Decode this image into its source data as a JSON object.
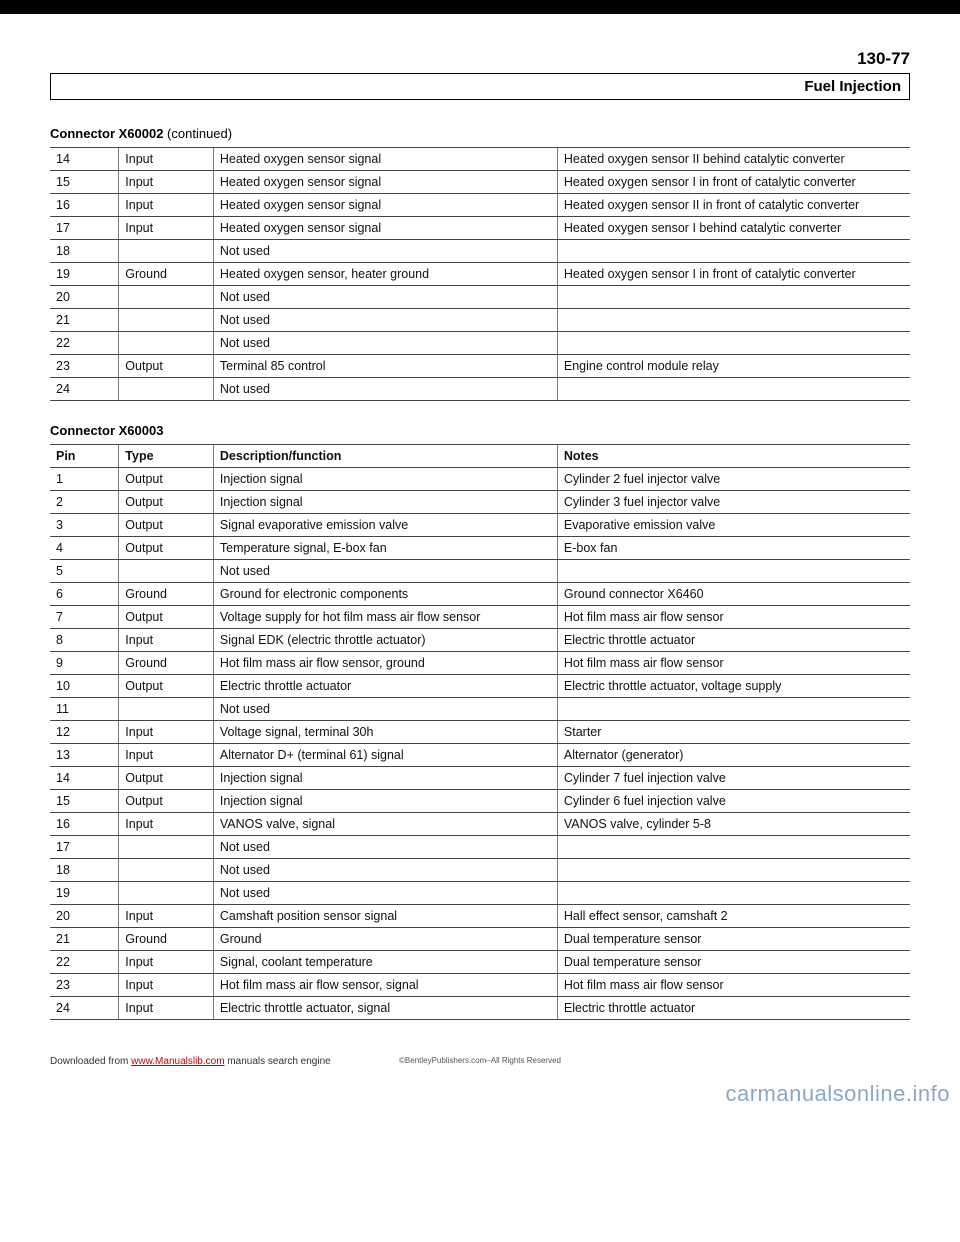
{
  "page_number": "130-77",
  "section_title": "Fuel Injection",
  "table1": {
    "caption_bold": "Connector X60002",
    "caption_rest": " (continued)",
    "rows": [
      {
        "pin": "14",
        "type": "Input",
        "desc": "Heated oxygen sensor signal",
        "notes": "Heated oxygen sensor II behind catalytic converter"
      },
      {
        "pin": "15",
        "type": "Input",
        "desc": "Heated oxygen sensor signal",
        "notes": "Heated oxygen sensor I in front of catalytic converter"
      },
      {
        "pin": "16",
        "type": "Input",
        "desc": "Heated oxygen sensor signal",
        "notes": "Heated oxygen sensor II in front of catalytic converter"
      },
      {
        "pin": "17",
        "type": "Input",
        "desc": "Heated oxygen sensor signal",
        "notes": "Heated oxygen sensor I behind catalytic converter"
      },
      {
        "pin": "18",
        "type": "",
        "desc": "Not used",
        "notes": ""
      },
      {
        "pin": "19",
        "type": "Ground",
        "desc": "Heated oxygen sensor, heater ground",
        "notes": "Heated oxygen sensor I in front of catalytic converter"
      },
      {
        "pin": "20",
        "type": "",
        "desc": "Not used",
        "notes": ""
      },
      {
        "pin": "21",
        "type": "",
        "desc": "Not used",
        "notes": ""
      },
      {
        "pin": "22",
        "type": "",
        "desc": "Not used",
        "notes": ""
      },
      {
        "pin": "23",
        "type": "Output",
        "desc": "Terminal 85 control",
        "notes": "Engine control module relay"
      },
      {
        "pin": "24",
        "type": "",
        "desc": "Not used",
        "notes": ""
      }
    ]
  },
  "table2": {
    "caption_bold": "Connector X60003",
    "headers": {
      "pin": "Pin",
      "type": "Type",
      "desc": "Description/function",
      "notes": "Notes"
    },
    "rows": [
      {
        "pin": "1",
        "type": "Output",
        "desc": "Injection signal",
        "notes": "Cylinder 2 fuel injector valve"
      },
      {
        "pin": "2",
        "type": "Output",
        "desc": "Injection signal",
        "notes": "Cylinder 3 fuel injector valve"
      },
      {
        "pin": "3",
        "type": "Output",
        "desc": "Signal evaporative emission valve",
        "notes": "Evaporative emission valve"
      },
      {
        "pin": "4",
        "type": "Output",
        "desc": "Temperature signal, E-box fan",
        "notes": "E-box fan"
      },
      {
        "pin": "5",
        "type": "",
        "desc": "Not used",
        "notes": ""
      },
      {
        "pin": "6",
        "type": "Ground",
        "desc": "Ground for electronic components",
        "notes": "Ground connector X6460"
      },
      {
        "pin": "7",
        "type": "Output",
        "desc": "Voltage supply for hot film mass air flow sensor",
        "notes": "Hot film mass air flow sensor"
      },
      {
        "pin": "8",
        "type": "Input",
        "desc": "Signal EDK (electric throttle actuator)",
        "notes": "Electric throttle actuator"
      },
      {
        "pin": "9",
        "type": "Ground",
        "desc": "Hot film mass air flow sensor, ground",
        "notes": "Hot film mass air flow sensor"
      },
      {
        "pin": "10",
        "type": "Output",
        "desc": "Electric throttle actuator",
        "notes": "Electric throttle actuator, voltage supply"
      },
      {
        "pin": "11",
        "type": "",
        "desc": "Not used",
        "notes": ""
      },
      {
        "pin": "12",
        "type": "Input",
        "desc": "Voltage signal, terminal 30h",
        "notes": "Starter"
      },
      {
        "pin": "13",
        "type": "Input",
        "desc": "Alternator D+ (terminal 61) signal",
        "notes": "Alternator (generator)"
      },
      {
        "pin": "14",
        "type": "Output",
        "desc": "Injection signal",
        "notes": "Cylinder 7 fuel injection valve"
      },
      {
        "pin": "15",
        "type": "Output",
        "desc": "Injection signal",
        "notes": "Cylinder 6 fuel injection valve"
      },
      {
        "pin": "16",
        "type": "Input",
        "desc": "VANOS valve, signal",
        "notes": "VANOS valve, cylinder 5-8"
      },
      {
        "pin": "17",
        "type": "",
        "desc": "Not used",
        "notes": ""
      },
      {
        "pin": "18",
        "type": "",
        "desc": "Not used",
        "notes": ""
      },
      {
        "pin": "19",
        "type": "",
        "desc": "Not used",
        "notes": ""
      },
      {
        "pin": "20",
        "type": "Input",
        "desc": "Camshaft position sensor signal",
        "notes": "Hall effect sensor, camshaft 2"
      },
      {
        "pin": "21",
        "type": "Ground",
        "desc": "Ground",
        "notes": "Dual temperature sensor"
      },
      {
        "pin": "22",
        "type": "Input",
        "desc": "Signal, coolant temperature",
        "notes": "Dual temperature sensor"
      },
      {
        "pin": "23",
        "type": "Input",
        "desc": "Hot film mass air flow sensor, signal",
        "notes": "Hot film mass air flow sensor"
      },
      {
        "pin": "24",
        "type": "Input",
        "desc": "Electric throttle actuator, signal",
        "notes": "Electric throttle actuator"
      }
    ]
  },
  "footer": {
    "downloaded_prefix": "Downloaded from ",
    "link_text": "www.Manualslib.com",
    "engine_text": " manuals search engine",
    "copyright": "©BentleyPublishers.com–All Rights Reserved",
    "watermark": "carmanualsonline.info"
  }
}
